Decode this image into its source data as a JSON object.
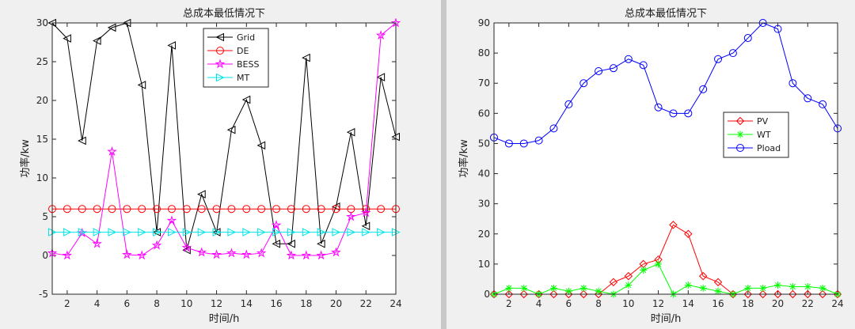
{
  "chart_data": [
    {
      "type": "line",
      "title": "总成本最低情况下",
      "xlabel": "时间/h",
      "ylabel": "功率/kw",
      "xlim": [
        1,
        24
      ],
      "ylim": [
        -5,
        30
      ],
      "xticks": [
        2,
        4,
        6,
        8,
        10,
        12,
        14,
        16,
        18,
        20,
        22,
        24
      ],
      "yticks": [
        -5,
        0,
        5,
        10,
        15,
        20,
        25,
        30
      ],
      "grid": false,
      "legend_position": "top-right",
      "x": [
        1,
        2,
        3,
        4,
        5,
        6,
        7,
        8,
        9,
        10,
        11,
        12,
        13,
        14,
        15,
        16,
        17,
        18,
        19,
        20,
        21,
        22,
        23,
        24
      ],
      "series": [
        {
          "name": "Grid",
          "color": "#000000",
          "marker": "triangle-left",
          "values": [
            30,
            28,
            14.8,
            27.7,
            29.4,
            30,
            22,
            3,
            27.1,
            0.7,
            7.9,
            3,
            16.2,
            20.1,
            14.2,
            1.5,
            1.5,
            25.5,
            1.5,
            6.3,
            15.9,
            3.8,
            23,
            15.3
          ]
        },
        {
          "name": "DE",
          "color": "#ff0000",
          "marker": "circle",
          "values": [
            6,
            6,
            6,
            6,
            6,
            6,
            6,
            6,
            6,
            6,
            6,
            6,
            6,
            6,
            6,
            6,
            6,
            6,
            6,
            6,
            6,
            6,
            6,
            6
          ]
        },
        {
          "name": "BESS",
          "color": "#ff00ff",
          "marker": "star",
          "values": [
            0.3,
            0,
            2.9,
            1.5,
            13.4,
            0.1,
            0,
            1.3,
            4.5,
            1,
            0.4,
            0.1,
            0.3,
            0.1,
            0.3,
            3.9,
            0,
            0,
            0,
            0.4,
            5,
            5.5,
            28.4,
            30
          ]
        },
        {
          "name": "MT",
          "color": "#00e5e5",
          "marker": "triangle-right",
          "values": [
            3,
            3,
            3,
            3,
            3,
            3,
            3,
            3,
            3,
            3,
            3,
            3,
            3,
            3,
            3,
            3,
            3,
            3,
            3,
            3,
            3,
            3,
            3,
            3
          ]
        }
      ]
    },
    {
      "type": "line",
      "title": "总成本最低情况下",
      "xlabel": "时间/h",
      "ylabel": "功率/kw",
      "xlim": [
        1,
        24
      ],
      "ylim": [
        0,
        90
      ],
      "xticks": [
        2,
        4,
        6,
        8,
        10,
        12,
        14,
        16,
        18,
        20,
        22,
        24
      ],
      "yticks": [
        0,
        10,
        20,
        30,
        40,
        50,
        60,
        70,
        80,
        90
      ],
      "grid": false,
      "legend_position": "center-right",
      "x": [
        1,
        2,
        3,
        4,
        5,
        6,
        7,
        8,
        9,
        10,
        11,
        12,
        13,
        14,
        15,
        16,
        17,
        18,
        19,
        20,
        21,
        22,
        23,
        24
      ],
      "series": [
        {
          "name": "PV",
          "color": "#ff0000",
          "marker": "diamond",
          "values": [
            0,
            0,
            0,
            0,
            0,
            0,
            0,
            0,
            4,
            6,
            10,
            11.5,
            23,
            20,
            6,
            4,
            0,
            0,
            0,
            0,
            0,
            0,
            0,
            0
          ]
        },
        {
          "name": "WT",
          "color": "#00ff00",
          "marker": "asterisk",
          "values": [
            0,
            2,
            2,
            0,
            2,
            1,
            2,
            1,
            0,
            3,
            8,
            10,
            0,
            3,
            2,
            1,
            0,
            2,
            2,
            3,
            2.5,
            2.5,
            2,
            0
          ]
        },
        {
          "name": "Pload",
          "color": "#0000ff",
          "marker": "circle",
          "values": [
            52,
            50,
            50,
            51,
            55,
            63,
            70,
            74,
            75,
            78,
            76,
            62,
            60,
            60,
            68,
            78,
            80,
            85,
            90,
            88,
            70,
            65,
            63,
            55
          ]
        }
      ]
    }
  ]
}
